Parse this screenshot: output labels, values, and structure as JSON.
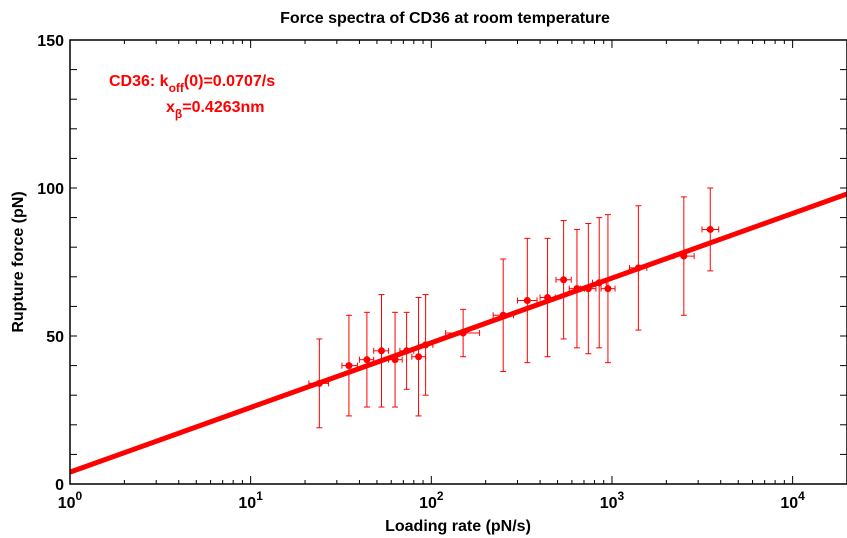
{
  "chart_data": {
    "type": "scatter",
    "title": "Force spectra of CD36 at room temperature",
    "xlabel": "Loading rate (pN/s)",
    "ylabel": "Rupture force (pN)",
    "x_scale": "log",
    "xlim": [
      1,
      20000
    ],
    "ylim": [
      0,
      150
    ],
    "grid": false,
    "x_ticks": [
      {
        "value": 1,
        "base": "10",
        "exp": "0"
      },
      {
        "value": 10,
        "base": "10",
        "exp": "1"
      },
      {
        "value": 100,
        "base": "10",
        "exp": "2"
      },
      {
        "value": 1000,
        "base": "10",
        "exp": "3"
      },
      {
        "value": 10000,
        "base": "10",
        "exp": "4"
      }
    ],
    "y_ticks": [
      {
        "value": 0,
        "label": "0"
      },
      {
        "value": 50,
        "label": "50"
      },
      {
        "value": 100,
        "label": "100"
      },
      {
        "value": 150,
        "label": "150"
      }
    ],
    "series_color": "#ff0000",
    "points": [
      {
        "x": 24,
        "y": 34,
        "yerr_low": 15,
        "yerr_high": 15,
        "xlo": 21,
        "xhi": 27
      },
      {
        "x": 35,
        "y": 40,
        "yerr_low": 17,
        "yerr_high": 17,
        "xlo": 32,
        "xhi": 39
      },
      {
        "x": 44,
        "y": 42,
        "yerr_low": 16,
        "yerr_high": 16,
        "xlo": 40,
        "xhi": 48
      },
      {
        "x": 53,
        "y": 45,
        "yerr_low": 19,
        "yerr_high": 19,
        "xlo": 48,
        "xhi": 58
      },
      {
        "x": 63,
        "y": 42,
        "yerr_low": 16,
        "yerr_high": 16,
        "xlo": 58,
        "xhi": 69
      },
      {
        "x": 73,
        "y": 45,
        "yerr_low": 13,
        "yerr_high": 13,
        "xlo": 67,
        "xhi": 80
      },
      {
        "x": 85,
        "y": 43,
        "yerr_low": 20,
        "yerr_high": 20,
        "xlo": 78,
        "xhi": 93
      },
      {
        "x": 93,
        "y": 47,
        "yerr_low": 17,
        "yerr_high": 17,
        "xlo": 85,
        "xhi": 102
      },
      {
        "x": 150,
        "y": 51,
        "yerr_low": 8,
        "yerr_high": 8,
        "xlo": 120,
        "xhi": 185
      },
      {
        "x": 250,
        "y": 57,
        "yerr_low": 19,
        "yerr_high": 19,
        "xlo": 220,
        "xhi": 285
      },
      {
        "x": 340,
        "y": 62,
        "yerr_low": 21,
        "yerr_high": 21,
        "xlo": 300,
        "xhi": 385
      },
      {
        "x": 440,
        "y": 63,
        "yerr_low": 20,
        "yerr_high": 20,
        "xlo": 400,
        "xhi": 485
      },
      {
        "x": 540,
        "y": 69,
        "yerr_low": 20,
        "yerr_high": 20,
        "xlo": 490,
        "xhi": 595
      },
      {
        "x": 640,
        "y": 66,
        "yerr_low": 20,
        "yerr_high": 20,
        "xlo": 580,
        "xhi": 705
      },
      {
        "x": 740,
        "y": 66,
        "yerr_low": 22,
        "yerr_high": 22,
        "xlo": 670,
        "xhi": 815
      },
      {
        "x": 850,
        "y": 68,
        "yerr_low": 22,
        "yerr_high": 22,
        "xlo": 780,
        "xhi": 930
      },
      {
        "x": 950,
        "y": 66,
        "yerr_low": 25,
        "yerr_high": 25,
        "xlo": 870,
        "xhi": 1040
      },
      {
        "x": 1400,
        "y": 73,
        "yerr_low": 21,
        "yerr_high": 21,
        "xlo": 1250,
        "xhi": 1560
      },
      {
        "x": 2500,
        "y": 77,
        "yerr_low": 20,
        "yerr_high": 20,
        "xlo": 2200,
        "xhi": 2850
      },
      {
        "x": 3500,
        "y": 86,
        "yerr_low": 14,
        "yerr_high": 14,
        "xlo": 3150,
        "xhi": 3900
      }
    ],
    "fit_line": {
      "x": [
        1,
        20000
      ],
      "y": [
        4,
        98
      ]
    },
    "annotation": {
      "line1_prefix": "CD36: k",
      "line1_sub": "off",
      "line1_suffix": "(0)=0.0707/s",
      "line2_prefix": "x",
      "line2_sub": "β",
      "line2_suffix": "=0.4263nm",
      "color": "#ff0000"
    }
  }
}
